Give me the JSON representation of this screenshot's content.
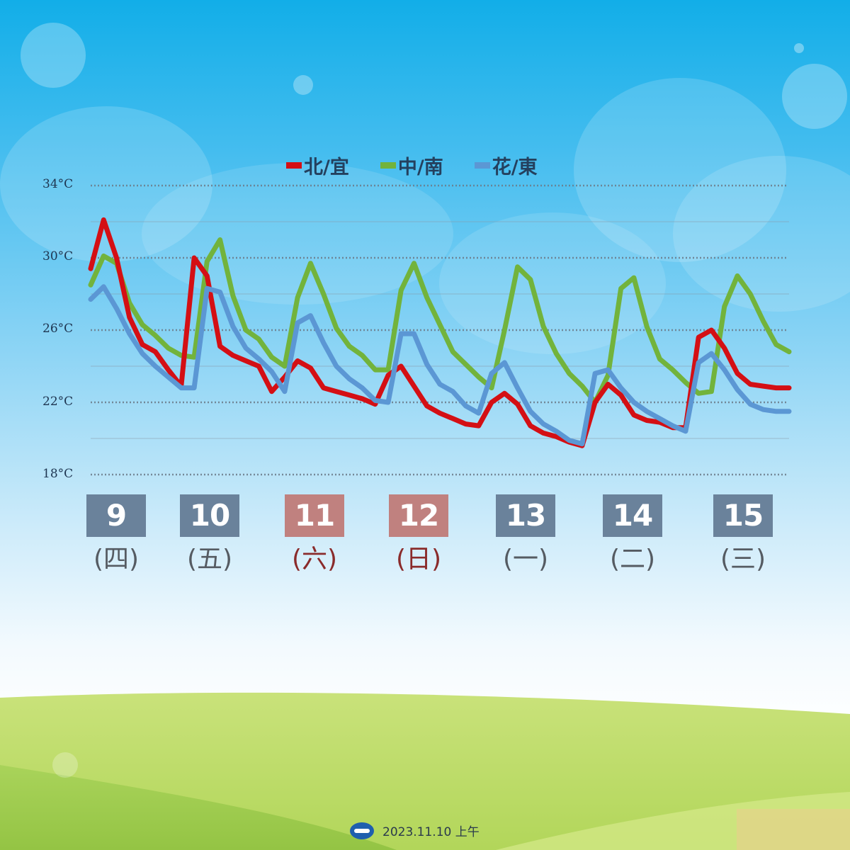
{
  "chart_data": {
    "type": "line",
    "title": "",
    "xlabel": "",
    "ylabel": "",
    "y_unit": "°C",
    "ylim": [
      18,
      34
    ],
    "grid": true,
    "legend_position": "top-center",
    "yticks": [
      "34°C",
      "30°C",
      "26°C",
      "22°C",
      "18°C"
    ],
    "x_range": [
      0,
      162
    ],
    "x_note": "hours from 00:00 on the 9th, 3-hourly samples",
    "x": [
      0,
      3,
      6,
      9,
      12,
      15,
      18,
      21,
      24,
      27,
      30,
      33,
      36,
      39,
      42,
      45,
      48,
      51,
      54,
      57,
      60,
      63,
      66,
      69,
      72,
      75,
      78,
      81,
      84,
      87,
      90,
      93,
      96,
      99,
      102,
      105,
      108,
      111,
      114,
      117,
      120,
      123,
      126,
      129,
      132,
      135,
      138,
      141,
      144,
      147,
      150,
      153,
      156,
      159,
      162
    ],
    "series": [
      {
        "name": "北/宜",
        "color": "#d40f14",
        "values": [
          29.4,
          32.1,
          30.0,
          26.7,
          25.2,
          24.8,
          23.8,
          22.9,
          30.0,
          29.0,
          25.1,
          24.6,
          24.3,
          24.0,
          22.6,
          23.4,
          24.3,
          23.9,
          22.8,
          22.6,
          22.4,
          22.2,
          21.9,
          23.5,
          24.0,
          22.9,
          21.8,
          21.4,
          21.1,
          20.8,
          20.7,
          22.0,
          22.5,
          21.9,
          20.7,
          20.3,
          20.1,
          19.8,
          19.6,
          22.0,
          23.0,
          22.4,
          21.3,
          21.0,
          20.9,
          20.6,
          20.6,
          25.6,
          26.0,
          25.0,
          23.6,
          23.0,
          22.9,
          22.8,
          22.8
        ]
      },
      {
        "name": "中/南",
        "color": "#72b33c",
        "values": [
          28.5,
          30.1,
          29.7,
          27.5,
          26.3,
          25.7,
          25.0,
          24.6,
          24.5,
          29.8,
          31.0,
          27.9,
          26.0,
          25.5,
          24.5,
          24.0,
          27.8,
          29.7,
          28.0,
          26.1,
          25.1,
          24.6,
          23.8,
          23.8,
          28.2,
          29.7,
          27.8,
          26.3,
          24.8,
          24.1,
          23.4,
          22.8,
          26.0,
          29.5,
          28.8,
          26.2,
          24.7,
          23.6,
          22.9,
          22.0,
          23.5,
          28.3,
          28.9,
          26.2,
          24.4,
          23.8,
          23.1,
          22.5,
          22.6,
          27.3,
          29.0,
          28.0,
          26.5,
          25.2,
          24.8
        ]
      },
      {
        "name": "花/東",
        "color": "#5b97d4",
        "values": [
          27.7,
          28.4,
          27.2,
          25.8,
          24.7,
          24.0,
          23.4,
          22.8,
          22.8,
          28.3,
          28.1,
          26.2,
          25.0,
          24.4,
          23.7,
          22.6,
          26.4,
          26.8,
          25.3,
          24.0,
          23.3,
          22.8,
          22.1,
          22.0,
          25.8,
          25.8,
          24.1,
          23.0,
          22.6,
          21.8,
          21.4,
          23.6,
          24.2,
          22.8,
          21.5,
          20.8,
          20.4,
          19.9,
          19.7,
          23.6,
          23.8,
          22.8,
          22.0,
          21.5,
          21.1,
          20.7,
          20.4,
          24.2,
          24.7,
          23.8,
          22.7,
          21.9,
          21.6,
          21.5,
          21.5
        ]
      }
    ]
  },
  "days": [
    {
      "num": "9",
      "weekday": "(四)",
      "box_color": "#6a829b",
      "text_color": "#555b62"
    },
    {
      "num": "10",
      "weekday": "(五)",
      "box_color": "#6a829b",
      "text_color": "#555b62"
    },
    {
      "num": "11",
      "weekday": "(六)",
      "box_color": "#c0817f",
      "text_color": "#8a2b2b"
    },
    {
      "num": "12",
      "weekday": "(日)",
      "box_color": "#c0817f",
      "text_color": "#8a2b2b"
    },
    {
      "num": "13",
      "weekday": "(一)",
      "box_color": "#6a829b",
      "text_color": "#555b62"
    },
    {
      "num": "14",
      "weekday": "(二)",
      "box_color": "#6a829b",
      "text_color": "#555b62"
    },
    {
      "num": "15",
      "weekday": "(三)",
      "box_color": "#6a829b",
      "text_color": "#555b62"
    }
  ],
  "footer": {
    "text": "2023.11.10  上午",
    "logo_icon": "cwa-logo-icon"
  }
}
